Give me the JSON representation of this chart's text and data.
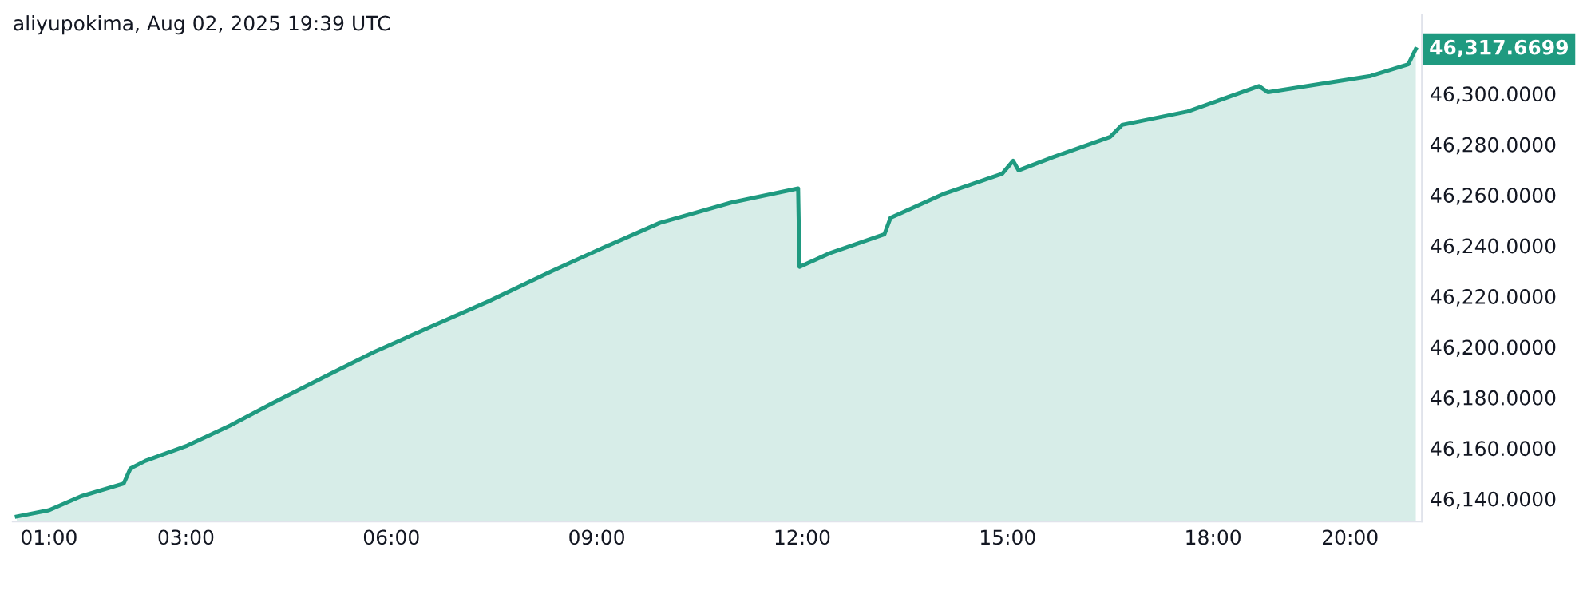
{
  "chart_data": {
    "type": "area",
    "title": "aliyupokima, Aug 02, 2025 19:39 UTC",
    "x": [
      0.53,
      1.0,
      1.47,
      2.09,
      2.19,
      2.41,
      3.02,
      3.65,
      4.28,
      5.01,
      5.75,
      6.58,
      7.42,
      8.35,
      9.08,
      9.92,
      10.96,
      11.94,
      11.96,
      12.4,
      13.2,
      13.29,
      14.08,
      14.92,
      15.08,
      15.16,
      15.67,
      16.5,
      16.67,
      17.63,
      18.67,
      18.8,
      20.3,
      20.85,
      20.96
    ],
    "series": [
      {
        "color": "#1f9a80",
        "values": [
          46133,
          46135.5,
          46141,
          46146,
          46152,
          46155,
          46161,
          46169,
          46178,
          46188,
          46198,
          46208,
          46218,
          46230,
          46239,
          46249,
          46257,
          46262.6,
          46231.6,
          46237,
          46244.5,
          46251,
          46260.6,
          46268.4,
          46273.5,
          46269.7,
          46275,
          46283,
          46287.7,
          46293,
          46303,
          46300.6,
          46307,
          46311.6,
          46317.6699
        ]
      }
    ],
    "xlim": [
      0.47,
      21.05
    ],
    "ylim": [
      46131,
      46331
    ],
    "xticks": [
      {
        "value": 1,
        "label": "01:00"
      },
      {
        "value": 3,
        "label": "03:00"
      },
      {
        "value": 6,
        "label": "06:00"
      },
      {
        "value": 9,
        "label": "09:00"
      },
      {
        "value": 12,
        "label": "12:00"
      },
      {
        "value": 15,
        "label": "15:00"
      },
      {
        "value": 18,
        "label": "18:00"
      },
      {
        "value": 20,
        "label": "20:00"
      }
    ],
    "yticks": [
      {
        "value": 46140,
        "label": "46,140.0000"
      },
      {
        "value": 46160,
        "label": "46,160.0000"
      },
      {
        "value": 46180,
        "label": "46,180.0000"
      },
      {
        "value": 46200,
        "label": "46,200.0000"
      },
      {
        "value": 46220,
        "label": "46,220.0000"
      },
      {
        "value": 46240,
        "label": "46,240.0000"
      },
      {
        "value": 46260,
        "label": "46,260.0000"
      },
      {
        "value": 46280,
        "label": "46,280.0000"
      },
      {
        "value": 46300,
        "label": "46,300.0000"
      }
    ],
    "annotations": [
      "46,317.6699"
    ],
    "grid": false
  }
}
